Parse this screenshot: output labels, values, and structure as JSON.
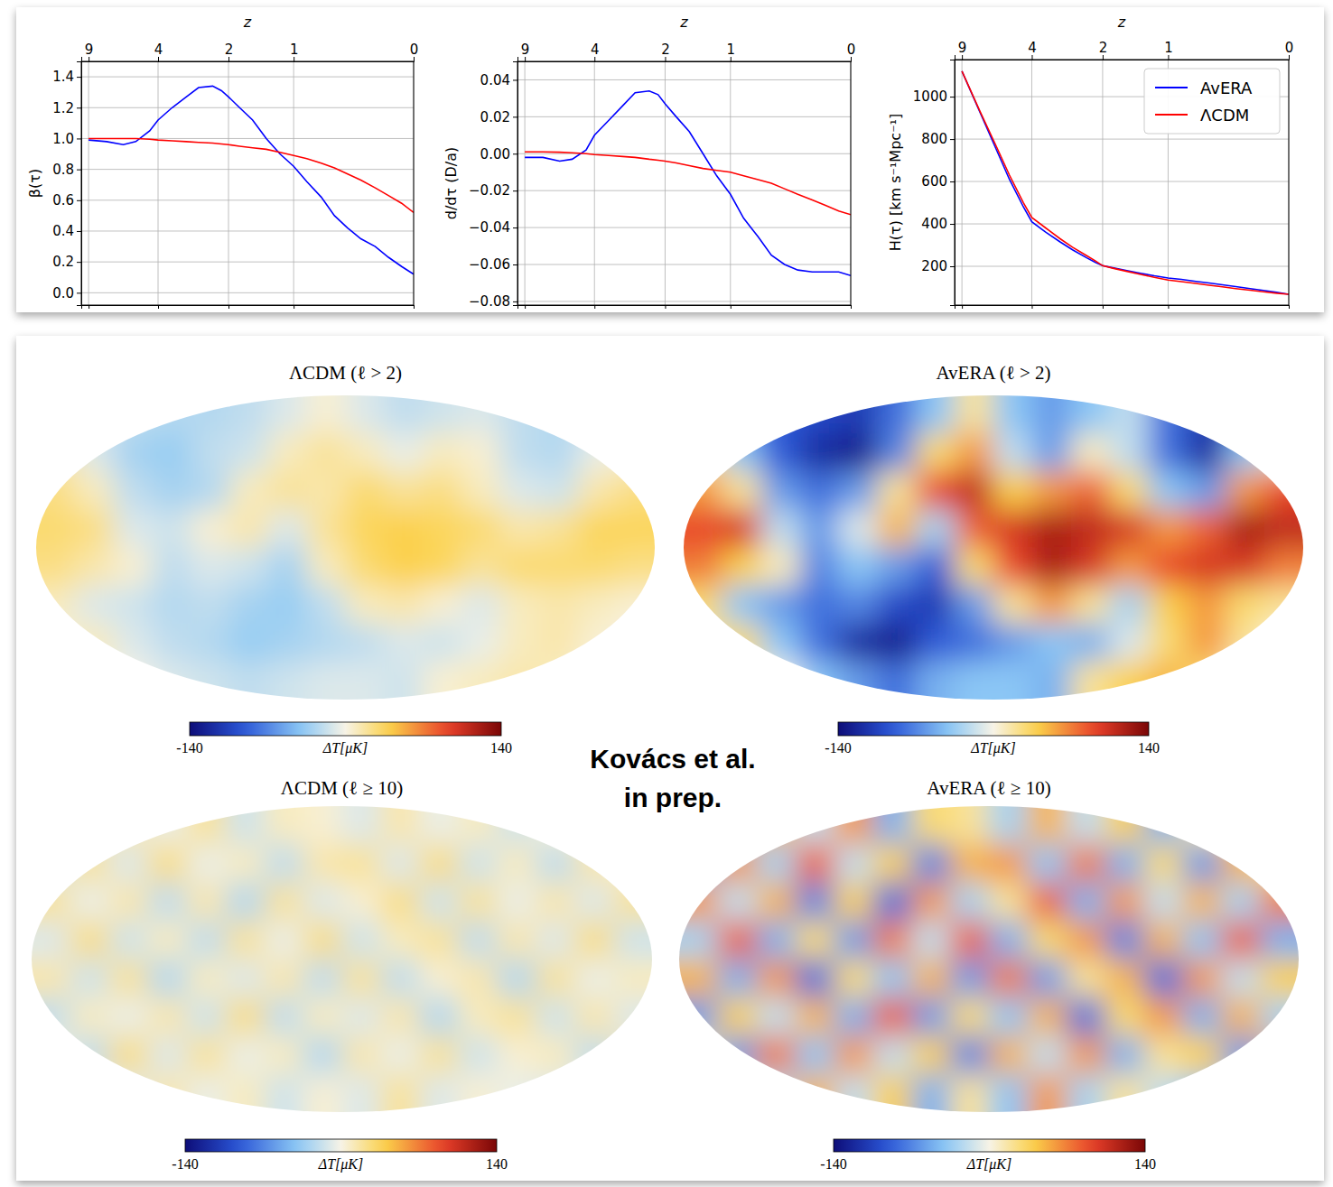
{
  "chart_data": [
    {
      "type": "line",
      "x_label": "z",
      "y_label": "β(τ)",
      "x": [
        9,
        7.7,
        6.5,
        5.6,
        4.6,
        4,
        3.6,
        3.2,
        2.85,
        2.45,
        2.2,
        2,
        1.83,
        1.63,
        1.42,
        1.21,
        1,
        0.89,
        0.77,
        0.66,
        0.55,
        0.44,
        0.32,
        0.21,
        0.1,
        0
      ],
      "xlim": [
        10,
        0
      ],
      "xticks": [
        9,
        4,
        2,
        1,
        0
      ],
      "ylim": [
        -0.08,
        1.5
      ],
      "yticks": [
        {
          "value": 0,
          "label": "0.0"
        },
        0.2,
        0.4,
        0.6,
        0.8,
        {
          "value": 1,
          "label": "1.0"
        },
        1.2,
        1.4
      ],
      "grid": true,
      "series": [
        {
          "color": "#0000ff",
          "values": [
            0.99,
            0.98,
            0.96,
            0.98,
            1.05,
            1.12,
            1.2,
            1.27,
            1.33,
            1.34,
            1.31,
            1.27,
            1.2,
            1.12,
            1.0,
            0.9,
            0.82,
            0.72,
            0.62,
            0.5,
            0.42,
            0.35,
            0.3,
            0.23,
            0.17,
            0.12
          ]
        },
        {
          "color": "#ff0000",
          "values": [
            1.0,
            1.0,
            1.0,
            1.0,
            0.995,
            0.99,
            0.985,
            0.98,
            0.975,
            0.97,
            0.965,
            0.96,
            0.95,
            0.94,
            0.93,
            0.91,
            0.89,
            0.87,
            0.84,
            0.81,
            0.77,
            0.73,
            0.68,
            0.63,
            0.58,
            0.52
          ]
        }
      ]
    },
    {
      "type": "line",
      "x_label": "z",
      "y_label": "d/dτ (D/a)",
      "x": [
        9,
        7.7,
        6.5,
        5.6,
        4.6,
        4,
        3.6,
        3.2,
        2.85,
        2.45,
        2.2,
        2,
        1.83,
        1.63,
        1.42,
        1.21,
        1,
        0.89,
        0.77,
        0.66,
        0.55,
        0.44,
        0.32,
        0.21,
        0.1,
        0
      ],
      "xlim": [
        10,
        0
      ],
      "xticks": [
        9,
        4,
        2,
        1,
        0
      ],
      "ylim": [
        -0.082,
        0.05
      ],
      "yticks": [
        {
          "value": -0.08,
          "label": "−0.08"
        },
        {
          "value": -0.06,
          "label": "−0.06"
        },
        {
          "value": -0.04,
          "label": "−0.04"
        },
        {
          "value": -0.02,
          "label": "−0.02"
        },
        {
          "value": 0,
          "label": "0.00"
        },
        0.02,
        0.04
      ],
      "grid": true,
      "series": [
        {
          "color": "#0000ff",
          "values": [
            -0.002,
            -0.002,
            -0.004,
            -0.003,
            0.002,
            0.01,
            0.018,
            0.026,
            0.033,
            0.034,
            0.032,
            0.027,
            0.02,
            0.012,
            0,
            -0.012,
            -0.022,
            -0.035,
            -0.045,
            -0.055,
            -0.06,
            -0.063,
            -0.064,
            -0.064,
            -0.064,
            -0.066
          ]
        },
        {
          "color": "#ff0000",
          "values": [
            0.001,
            0.001,
            0.0008,
            0.0005,
            0,
            -0.0005,
            -0.001,
            -0.0015,
            -0.002,
            -0.003,
            -0.0035,
            -0.004,
            -0.005,
            -0.0065,
            -0.008,
            -0.009,
            -0.01,
            -0.012,
            -0.014,
            -0.016,
            -0.019,
            -0.022,
            -0.025,
            -0.028,
            -0.031,
            -0.033
          ]
        }
      ]
    },
    {
      "type": "line",
      "x_label": "z",
      "y_label": "H(τ) [km s⁻¹Mpc⁻¹]",
      "x": [
        9,
        7.7,
        6.5,
        5.6,
        4.6,
        4,
        3.6,
        3.2,
        2.85,
        2.45,
        2.2,
        2,
        1.83,
        1.63,
        1.42,
        1.21,
        1,
        0.89,
        0.77,
        0.66,
        0.55,
        0.44,
        0.32,
        0.21,
        0.1,
        0
      ],
      "xlim": [
        10,
        0
      ],
      "xticks": [
        9,
        4,
        2,
        1,
        0
      ],
      "ylim": [
        17,
        1175
      ],
      "yticks": [
        200,
        400,
        600,
        800,
        1000
      ],
      "grid": true,
      "legend": "upper right",
      "series": [
        {
          "name": "AvERA",
          "color": "#0000ff",
          "values": [
            1120,
            925,
            745,
            610,
            480,
            410,
            360,
            315,
            278,
            240,
            218,
            203,
            192,
            180,
            167,
            155,
            145,
            138,
            129,
            121,
            113,
            104,
            95,
            86,
            77,
            68
          ]
        },
        {
          "name": "ΛCDM",
          "color": "#ff0000",
          "values": [
            1120,
            930,
            760,
            630,
            500,
            430,
            380,
            330,
            290,
            250,
            225,
            203,
            190,
            176,
            162,
            148,
            135,
            128,
            119,
            111,
            103,
            95,
            87,
            80,
            73,
            68
          ]
        }
      ]
    },
    {
      "type": "heatmap",
      "title": "ΛCDM (ℓ > 2)",
      "tick_labels": false,
      "color_range": [
        -140,
        140
      ],
      "color_ticks": [
        -140,
        140
      ],
      "colorbar_label": "ΔT[μK]",
      "cells": [
        [
          -10,
          -15,
          -20,
          -25,
          -25,
          -20,
          -10,
          5,
          -10,
          -20,
          -15,
          -10,
          -20,
          -25,
          -20,
          -10
        ],
        [
          15,
          -10,
          -30,
          -35,
          -20,
          -15,
          10,
          20,
          10,
          -5,
          10,
          5,
          -20,
          -25,
          -5,
          5
        ],
        [
          25,
          10,
          -20,
          -30,
          -25,
          10,
          20,
          15,
          30,
          20,
          25,
          10,
          -10,
          -15,
          15,
          25
        ],
        [
          30,
          25,
          -10,
          -15,
          5,
          15,
          -10,
          20,
          35,
          40,
          35,
          30,
          15,
          20,
          35,
          35
        ],
        [
          25,
          15,
          5,
          -20,
          -10,
          -15,
          -30,
          10,
          30,
          40,
          35,
          20,
          30,
          30,
          30,
          25
        ],
        [
          10,
          -10,
          -15,
          -25,
          -20,
          -30,
          -35,
          -20,
          10,
          15,
          5,
          -10,
          10,
          15,
          10,
          5
        ],
        [
          5,
          10,
          -10,
          -20,
          -25,
          -35,
          -30,
          -25,
          -20,
          -10,
          -15,
          -5,
          10,
          15,
          5,
          0
        ],
        [
          0,
          5,
          0,
          -10,
          -15,
          -20,
          -15,
          -10,
          -10,
          -15,
          5,
          10,
          15,
          10,
          0,
          0
        ]
      ]
    },
    {
      "type": "heatmap",
      "title": "AvERA (ℓ > 2)",
      "tick_labels": false,
      "color_range": [
        -140,
        140
      ],
      "color_ticks": [
        -140,
        140
      ],
      "colorbar_label": "ΔT[μK]",
      "cells": [
        [
          -60,
          -80,
          -90,
          -100,
          -110,
          -80,
          -40,
          20,
          -40,
          -60,
          -40,
          -20,
          -80,
          -110,
          -90,
          -40
        ],
        [
          20,
          -40,
          -90,
          -120,
          -130,
          -70,
          30,
          60,
          -20,
          -60,
          10,
          -20,
          -80,
          -120,
          -40,
          10
        ],
        [
          60,
          20,
          -60,
          -80,
          -60,
          20,
          90,
          110,
          40,
          60,
          80,
          30,
          -40,
          -60,
          60,
          90
        ],
        [
          90,
          100,
          -20,
          -60,
          -10,
          50,
          -30,
          80,
          100,
          120,
          110,
          100,
          60,
          80,
          120,
          110
        ],
        [
          70,
          40,
          10,
          -70,
          -40,
          -60,
          -90,
          30,
          90,
          120,
          100,
          60,
          90,
          100,
          100,
          70
        ],
        [
          30,
          -40,
          -60,
          -80,
          -70,
          -100,
          -110,
          -60,
          20,
          60,
          20,
          -30,
          40,
          60,
          30,
          20
        ],
        [
          20,
          30,
          -40,
          -80,
          -120,
          -130,
          -90,
          -80,
          -60,
          -40,
          -50,
          -10,
          30,
          60,
          20,
          0
        ],
        [
          0,
          20,
          0,
          -40,
          -60,
          -80,
          -50,
          -40,
          -40,
          -50,
          20,
          40,
          50,
          30,
          0,
          0
        ]
      ]
    },
    {
      "type": "heatmap",
      "title": "ΛCDM (ℓ ≥ 10)",
      "tick_labels": false,
      "color_range": [
        -140,
        140
      ],
      "color_ticks": [
        -140,
        140
      ],
      "colorbar_label": "ΔT[μK]",
      "cells": [
        [
          10,
          -10,
          15,
          -5,
          20,
          -15,
          10,
          5,
          -10,
          15,
          -5,
          10,
          -15,
          5,
          10,
          -5
        ],
        [
          -15,
          20,
          -10,
          25,
          -5,
          10,
          -20,
          15,
          20,
          -10,
          25,
          -15,
          10,
          -20,
          15,
          5
        ],
        [
          20,
          -5,
          15,
          -20,
          15,
          -25,
          20,
          -10,
          5,
          25,
          -15,
          20,
          -5,
          15,
          -10,
          20
        ],
        [
          -10,
          25,
          -15,
          10,
          -20,
          20,
          -5,
          25,
          -15,
          10,
          20,
          -20,
          15,
          -10,
          25,
          -15
        ],
        [
          15,
          -15,
          20,
          -25,
          10,
          -10,
          15,
          -20,
          20,
          -20,
          5,
          15,
          -25,
          20,
          -5,
          10
        ],
        [
          -20,
          10,
          -5,
          15,
          -15,
          25,
          -20,
          10,
          -10,
          15,
          -25,
          10,
          20,
          -15,
          15,
          -10
        ],
        [
          5,
          -20,
          25,
          -10,
          20,
          -5,
          10,
          -25,
          15,
          -5,
          20,
          -15,
          5,
          10,
          -20,
          15
        ],
        [
          0,
          10,
          -10,
          15,
          -5,
          10,
          -15,
          5,
          -10,
          20,
          -10,
          5,
          -5,
          -10,
          5,
          0
        ]
      ]
    },
    {
      "type": "heatmap",
      "title": "AvERA (ℓ ≥ 10)",
      "tick_labels": false,
      "color_range": [
        -140,
        140
      ],
      "color_ticks": [
        -140,
        140
      ],
      "colorbar_label": "ΔT[μK]",
      "cells": [
        [
          30,
          -40,
          50,
          -20,
          60,
          -50,
          30,
          20,
          -30,
          50,
          -20,
          40,
          -50,
          20,
          40,
          -20
        ],
        [
          -50,
          60,
          -30,
          80,
          -20,
          40,
          -70,
          50,
          60,
          -40,
          70,
          -50,
          30,
          -60,
          50,
          20
        ],
        [
          60,
          -20,
          50,
          -70,
          40,
          -80,
          60,
          -30,
          20,
          80,
          -50,
          60,
          -20,
          50,
          -30,
          70
        ],
        [
          -30,
          80,
          -50,
          30,
          -60,
          70,
          -20,
          80,
          -50,
          30,
          60,
          -70,
          50,
          -40,
          80,
          -50
        ],
        [
          50,
          -50,
          60,
          -80,
          30,
          -40,
          50,
          -60,
          70,
          -60,
          20,
          50,
          -80,
          60,
          -20,
          40
        ],
        [
          -60,
          40,
          -20,
          50,
          -50,
          80,
          -60,
          30,
          -40,
          50,
          -80,
          30,
          60,
          -50,
          50,
          -30
        ],
        [
          20,
          -60,
          70,
          -40,
          60,
          -20,
          40,
          -70,
          50,
          -20,
          60,
          -50,
          20,
          40,
          -60,
          50
        ],
        [
          0,
          30,
          -30,
          50,
          -20,
          40,
          -50,
          20,
          -40,
          60,
          -30,
          20,
          -20,
          -40,
          20,
          0
        ]
      ]
    }
  ],
  "annotation": [
    "Kovács et al.",
    "in prep."
  ]
}
